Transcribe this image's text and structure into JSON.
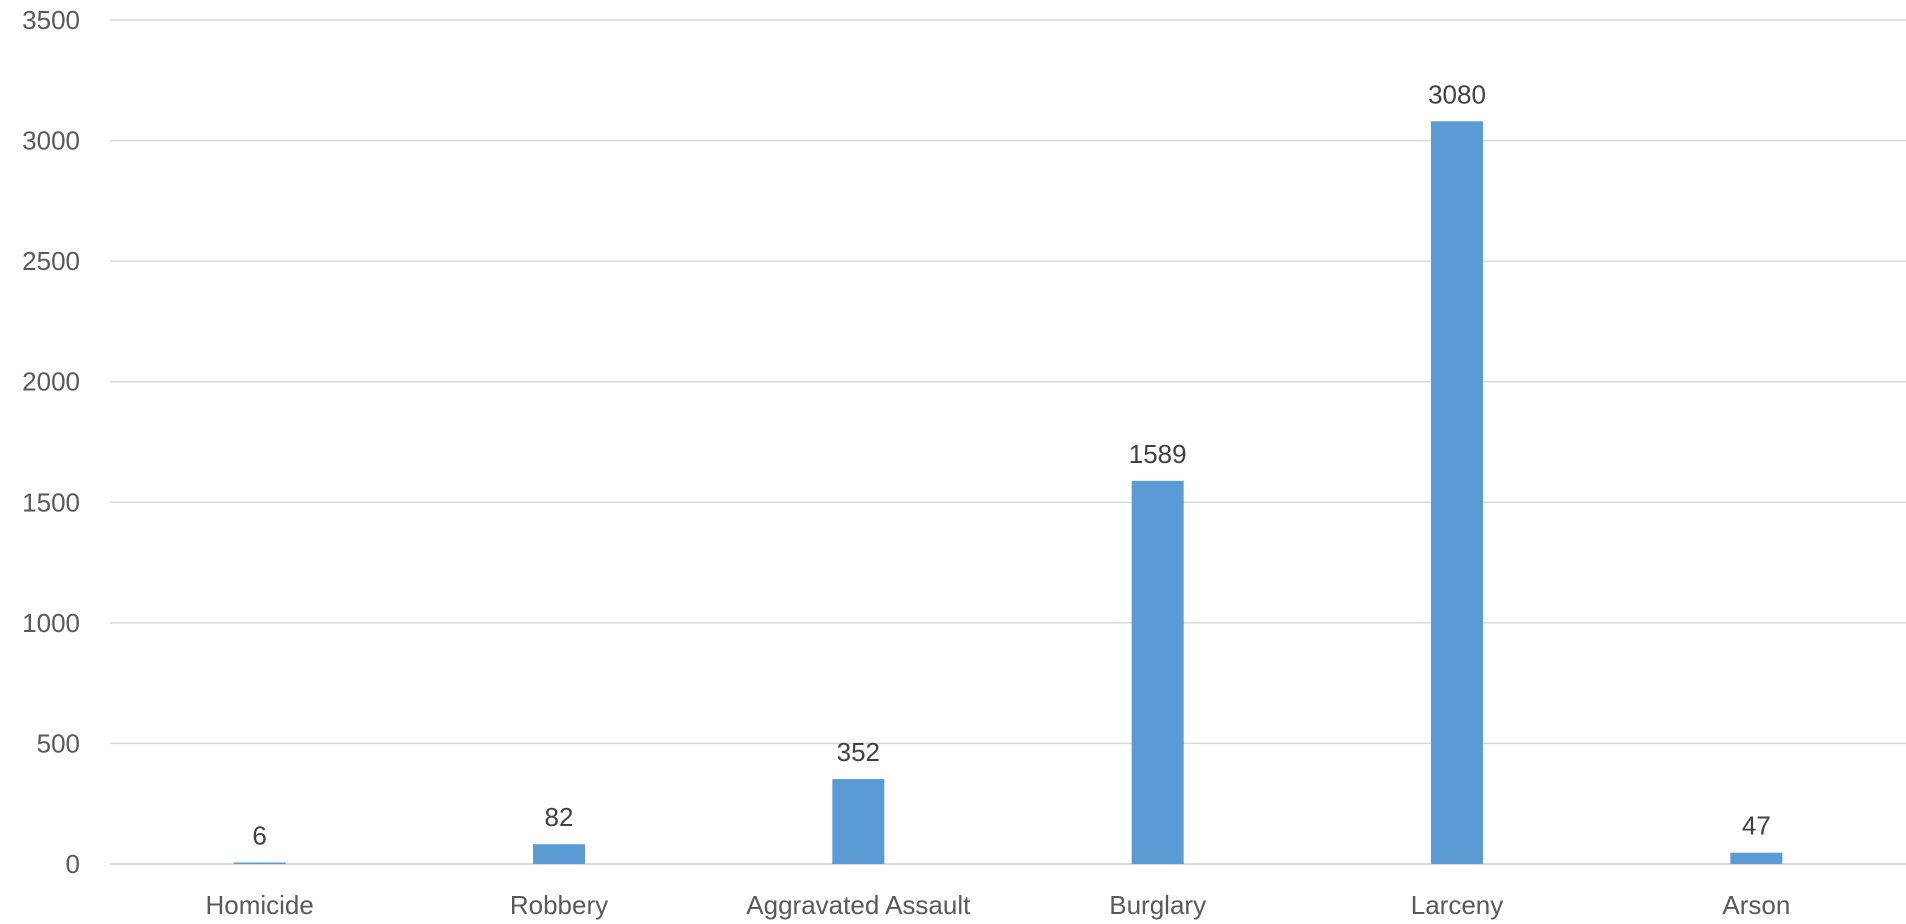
{
  "chart_data": {
    "type": "bar",
    "categories": [
      "Homicide",
      "Robbery",
      "Aggravated Assault",
      "Burglary",
      "Larceny",
      "Arson"
    ],
    "values": [
      6,
      82,
      352,
      1589,
      3080,
      47
    ],
    "data_labels": [
      "6",
      "82",
      "352",
      "1589",
      "3080",
      "47"
    ],
    "y_ticks": [
      0,
      500,
      1000,
      1500,
      2000,
      2500,
      3000,
      3500
    ],
    "ylim": [
      0,
      3500
    ],
    "grid": true,
    "legend": "none",
    "bar_color": "#5b9bd5",
    "title": "",
    "xlabel": "",
    "ylabel": ""
  }
}
